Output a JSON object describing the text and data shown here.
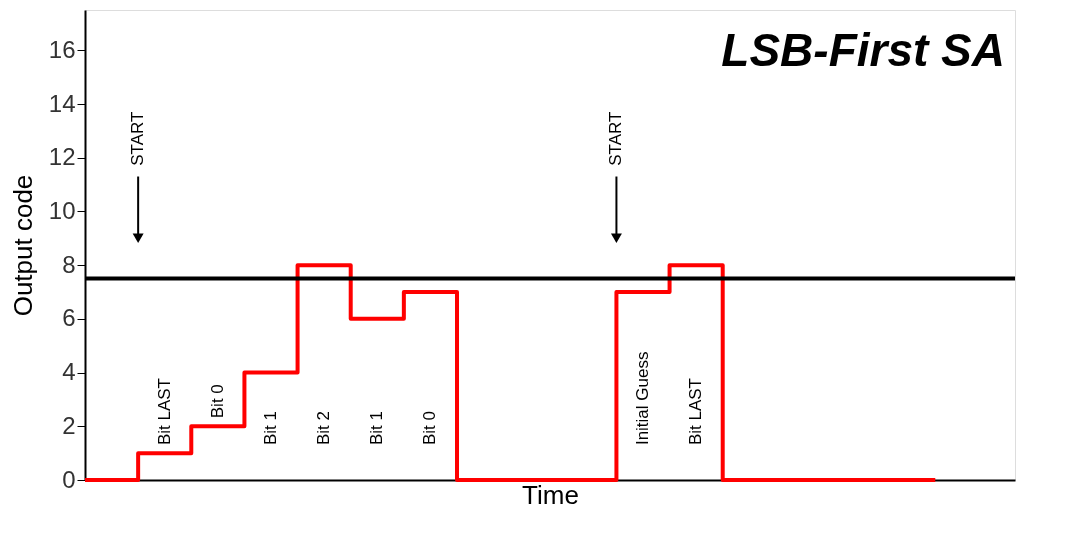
{
  "chart_data": {
    "type": "step",
    "title": "LSB-First SA",
    "xlabel": "Time",
    "ylabel": "Output code",
    "categories": [
      null,
      null,
      null,
      null,
      null,
      null,
      null,
      null,
      null,
      null,
      null,
      null,
      null,
      null,
      null,
      null,
      null
    ],
    "series": [
      {
        "color": "#ff0000",
        "values": [
          0,
          1,
          2,
          4,
          8,
          6,
          7,
          0,
          0,
          0,
          7,
          8,
          0,
          0,
          0,
          0,
          0
        ]
      }
    ],
    "ylim": [
      0,
      17.5
    ],
    "yticks": [
      0,
      2,
      4,
      6,
      8,
      10,
      12,
      14,
      16
    ],
    "ref_lines": [
      {
        "axis": "y",
        "value": 7.5,
        "color": "#000000",
        "line_style": "solid"
      }
    ],
    "annotations": [
      "START",
      "START",
      "Bit LAST",
      "Bit 0",
      "Bit 1",
      "Bit 2",
      "Bit 1",
      "Bit 0",
      "Initial Guess",
      "Bit LAST"
    ],
    "grid": false,
    "marker": "none",
    "line_style": "solid"
  }
}
